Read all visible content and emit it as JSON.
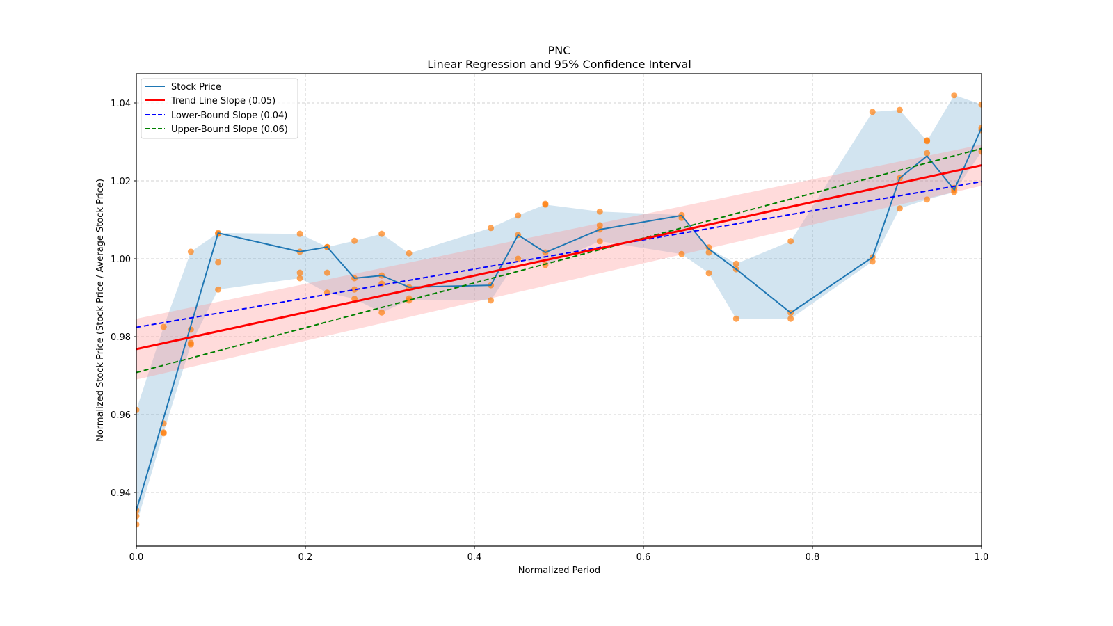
{
  "chart_data": {
    "type": "line",
    "title": "PNC",
    "subtitle": "Linear Regression and 95% Confidence Interval",
    "xlabel": "Normalized Period",
    "ylabel": "Normalized Stock Price (Stock Price / Average Stock Price)",
    "xlim": [
      0.0,
      1.0
    ],
    "ylim": [
      0.926,
      1.047
    ],
    "xticks": [
      "0.0",
      "0.2",
      "0.4",
      "0.6",
      "0.8",
      "1.0"
    ],
    "yticks": [
      "0.94",
      "0.96",
      "0.98",
      "1.00",
      "1.02",
      "1.04"
    ],
    "grid": true,
    "legend_position": "top-left",
    "legend": [
      {
        "label": "Stock Price",
        "color": "#1f77b4",
        "style": "solid"
      },
      {
        "label": "Trend Line Slope (0.05)",
        "color": "#ff0000",
        "style": "solid"
      },
      {
        "label": "Lower-Bound Slope (0.04)",
        "color": "#0000ff",
        "style": "dashed"
      },
      {
        "label": "Upper-Bound Slope (0.06)",
        "color": "#008000",
        "style": "dashed"
      }
    ],
    "stock_price": {
      "x": [
        0.0,
        0.0968,
        0.1935,
        0.2258,
        0.2581,
        0.2903,
        0.3226,
        0.4194,
        0.4516,
        0.4839,
        0.5484,
        0.6452,
        0.6774,
        0.7097,
        0.7742,
        0.871,
        0.9032,
        0.9355,
        0.9677,
        1.0
      ],
      "y": [
        0.9354,
        1.0066,
        1.0018,
        1.003,
        0.995,
        0.9957,
        0.9927,
        0.9932,
        1.0061,
        1.0016,
        1.0075,
        1.0111,
        1.0025,
        0.9973,
        0.9861,
        1.0004,
        1.0207,
        1.0264,
        1.0177,
        1.0336
      ]
    },
    "band": {
      "x": [
        0.0,
        0.0323,
        0.0645,
        0.0968,
        0.1935,
        0.2258,
        0.2581,
        0.2903,
        0.3226,
        0.4194,
        0.4516,
        0.4839,
        0.5484,
        0.6452,
        0.6774,
        0.7097,
        0.7742,
        0.871,
        0.9032,
        0.9355,
        0.9677,
        1.0
      ],
      "upper": [
        0.9612,
        0.9825,
        1.0018,
        1.0066,
        1.0064,
        1.003,
        1.0046,
        1.0064,
        1.0014,
        1.0079,
        1.0111,
        1.0139,
        1.0121,
        1.0112,
        1.0027,
        0.9987,
        1.0045,
        1.0377,
        1.0382,
        1.0302,
        1.042,
        1.0396
      ],
      "lower": [
        0.9318,
        0.9554,
        0.978,
        0.9921,
        0.995,
        0.9913,
        0.9897,
        0.9862,
        0.9893,
        0.9893,
        1.0,
        0.9984,
        1.0045,
        1.0012,
        0.9963,
        0.9846,
        0.9846,
        0.9993,
        1.0129,
        1.0152,
        1.0171,
        1.0275
      ]
    },
    "points": {
      "x": [
        0.0,
        0.0,
        0.0,
        0.0,
        0.0323,
        0.0323,
        0.0323,
        0.0323,
        0.0645,
        0.0645,
        0.0645,
        0.0645,
        0.0968,
        0.0968,
        0.0968,
        0.0968,
        0.1935,
        0.1935,
        0.1935,
        0.1935,
        0.2258,
        0.2258,
        0.2258,
        0.2258,
        0.2581,
        0.2581,
        0.2581,
        0.2581,
        0.2903,
        0.2903,
        0.2903,
        0.2903,
        0.3226,
        0.3226,
        0.3226,
        0.3226,
        0.4194,
        0.4194,
        0.4194,
        0.4516,
        0.4516,
        0.4516,
        0.4839,
        0.4839,
        0.4839,
        0.4839,
        0.5484,
        0.5484,
        0.5484,
        0.5484,
        0.6452,
        0.6452,
        0.6452,
        0.6774,
        0.6774,
        0.6774,
        0.7097,
        0.7097,
        0.7097,
        0.7742,
        0.7742,
        0.7742,
        0.871,
        0.871,
        0.871,
        0.9032,
        0.9032,
        0.9032,
        0.9355,
        0.9355,
        0.9355,
        0.9355,
        0.9677,
        0.9677,
        0.9677,
        0.9677,
        1.0,
        1.0,
        1.0,
        1.0
      ],
      "y": [
        0.9612,
        0.9354,
        0.9339,
        0.9318,
        0.9825,
        0.9577,
        0.9554,
        0.9552,
        1.0018,
        0.9818,
        0.9784,
        0.978,
        1.0066,
        1.0064,
        0.9991,
        0.9921,
        1.0064,
        1.0018,
        0.9964,
        0.995,
        1.003,
        1.003,
        0.9964,
        0.9913,
        1.0046,
        0.995,
        0.9921,
        0.9897,
        1.0064,
        0.9957,
        0.9936,
        0.9862,
        1.0014,
        0.9927,
        0.9898,
        0.9893,
        1.0079,
        0.9932,
        0.9893,
        1.0111,
        1.0061,
        1.0,
        1.0139,
        1.0141,
        1.0016,
        0.9984,
        1.0121,
        1.0086,
        1.0075,
        1.0045,
        1.0112,
        1.0105,
        1.0012,
        1.0029,
        1.0016,
        0.9963,
        0.9987,
        0.9973,
        0.9846,
        1.0045,
        0.9861,
        0.9846,
        1.0377,
        1.0004,
        0.9993,
        1.0382,
        1.0207,
        1.0129,
        1.0302,
        1.0304,
        1.0271,
        1.0152,
        1.042,
        1.0177,
        1.0182,
        1.0171,
        1.0396,
        1.0336,
        1.033,
        1.0275
      ]
    },
    "trend_line": {
      "x": [
        0.0,
        1.0
      ],
      "y": [
        0.9768,
        1.024
      ],
      "slope": 0.05,
      "ci_upper": [
        0.9846,
        1.0293
      ],
      "ci_lower": [
        0.969,
        1.0187
      ]
    },
    "lower_bound_line": {
      "x": [
        0.0,
        1.0
      ],
      "y": [
        0.9824,
        1.0198
      ],
      "slope": 0.04
    },
    "upper_bound_line": {
      "x": [
        0.0,
        1.0
      ],
      "y": [
        0.9708,
        1.0283
      ],
      "slope": 0.06
    },
    "colors": {
      "stock": "#1f77b4",
      "band": "#1f77b4",
      "points": "#ff7f0e",
      "trend": "#ff0000",
      "trend_band": "#ff9999",
      "lower": "#0000ff",
      "upper": "#008000",
      "grid": "#b0b0b0"
    }
  }
}
